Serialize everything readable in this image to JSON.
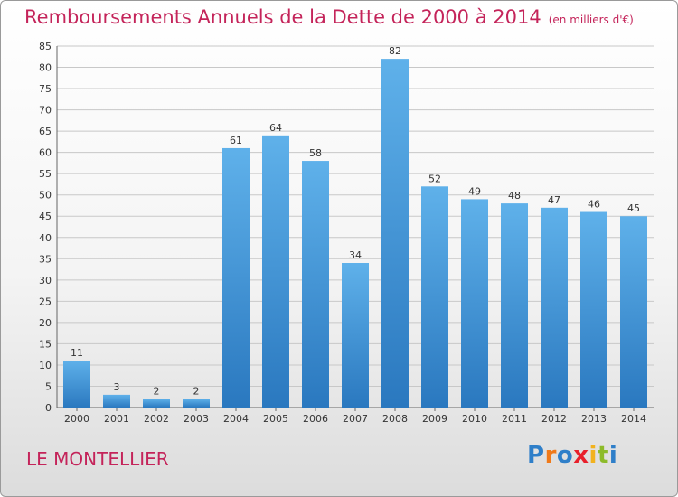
{
  "title": "Remboursements Annuels de la Dette de 2000 à 2014",
  "unit": "(en milliers d'€)",
  "commune": "LE MONTELLIER",
  "logo": {
    "text": "Proxiti",
    "letters": [
      {
        "char": "P",
        "color": "#2f7fc9"
      },
      {
        "char": "r",
        "color": "#f07a1a"
      },
      {
        "char": "o",
        "color": "#2f7fc9"
      },
      {
        "char": "x",
        "color": "#e8202b"
      },
      {
        "char": "i",
        "color": "#f2b21e"
      },
      {
        "char": "t",
        "color": "#8dbb2a"
      },
      {
        "char": "i",
        "color": "#2f7fc9"
      }
    ]
  },
  "colors": {
    "title": "#c4245a",
    "bar_top": "#5fb1ea",
    "bar_bottom": "#2a78bf",
    "grid": "#c8c8c8",
    "axis_text": "#333333"
  },
  "chart_data": {
    "type": "bar",
    "title": "Remboursements Annuels de la Dette de 2000 à 2014",
    "xlabel": "",
    "ylabel": "",
    "categories": [
      "2000",
      "2001",
      "2002",
      "2003",
      "2004",
      "2005",
      "2006",
      "2007",
      "2008",
      "2009",
      "2010",
      "2011",
      "2012",
      "2013",
      "2014"
    ],
    "values": [
      11,
      3,
      2,
      2,
      61,
      64,
      58,
      34,
      82,
      52,
      49,
      48,
      47,
      46,
      45
    ],
    "ylim": [
      0,
      85
    ],
    "yticks": [
      0,
      5,
      10,
      15,
      20,
      25,
      30,
      35,
      40,
      45,
      50,
      55,
      60,
      65,
      70,
      75,
      80,
      85
    ],
    "grid": true
  }
}
